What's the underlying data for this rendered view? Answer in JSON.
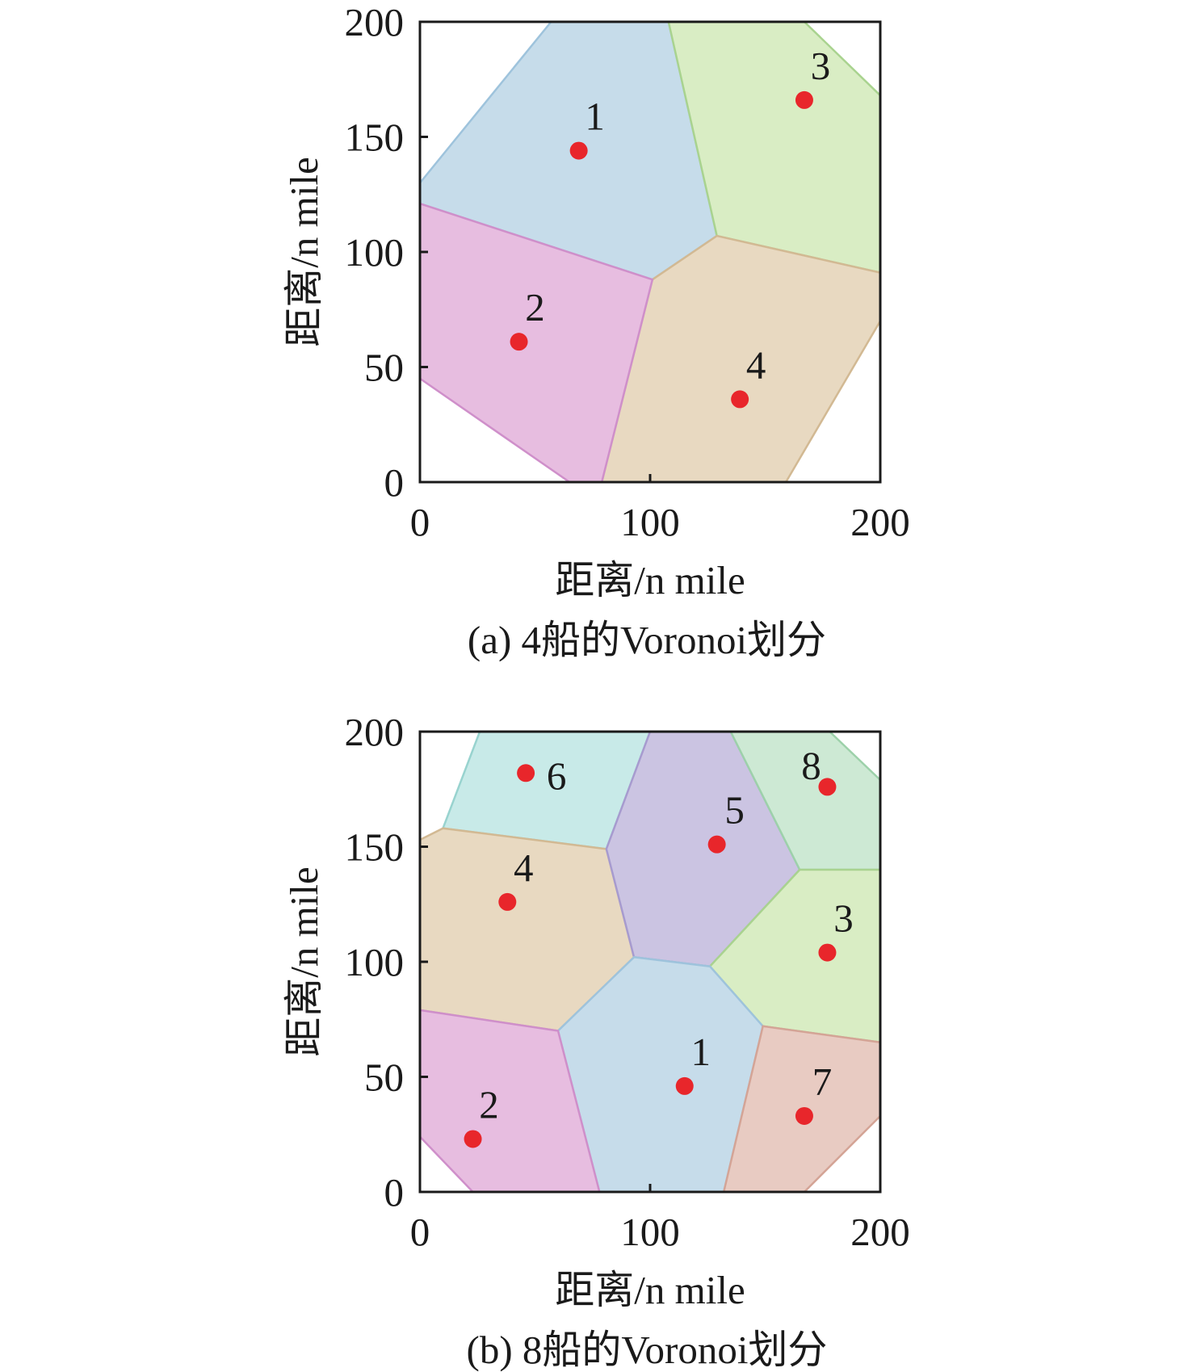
{
  "chart_data": [
    {
      "type": "scatter",
      "subtype": "voronoi",
      "caption": "(a) 4船的Voronoi划分",
      "xlabel": "距离/n mile",
      "ylabel": "距离/n mile",
      "xlim": [
        0,
        200
      ],
      "ylim": [
        0,
        200
      ],
      "xticks": [
        "0",
        "100",
        "200"
      ],
      "yticks": [
        "0",
        "50",
        "100",
        "150",
        "200"
      ],
      "point_color": "#e8262b",
      "points": [
        {
          "label": "1",
          "x": 69,
          "y": 144
        },
        {
          "label": "2",
          "x": 43,
          "y": 61
        },
        {
          "label": "3",
          "x": 167,
          "y": 166
        },
        {
          "label": "4",
          "x": 139,
          "y": 36
        }
      ],
      "cells": [
        {
          "site": "1",
          "color": "#c6dcea",
          "edge": "#9ec3dc",
          "vertices": [
            [
              0,
              130
            ],
            [
              57,
              200
            ],
            [
              108,
              200
            ],
            [
              129,
              107
            ],
            [
              101,
              88
            ],
            [
              0,
              121
            ]
          ]
        },
        {
          "site": "3",
          "color": "#d9edc4",
          "edge": "#a9d38f",
          "vertices": [
            [
              108,
              200
            ],
            [
              167,
              200
            ],
            [
              200,
              168
            ],
            [
              200,
              91
            ],
            [
              129,
              107
            ]
          ]
        },
        {
          "site": "4",
          "color": "#e8d9c1",
          "edge": "#d2b993",
          "vertices": [
            [
              101,
              88
            ],
            [
              129,
              107
            ],
            [
              200,
              91
            ],
            [
              200,
              70
            ],
            [
              159,
              0
            ],
            [
              79,
              0
            ]
          ]
        },
        {
          "site": "2",
          "color": "#e7bde0",
          "edge": "#cf8fca",
          "vertices": [
            [
              0,
              121
            ],
            [
              101,
              88
            ],
            [
              79,
              0
            ],
            [
              65,
              0
            ],
            [
              0,
              45
            ]
          ]
        }
      ]
    },
    {
      "type": "scatter",
      "subtype": "voronoi",
      "caption": "(b) 8船的Voronoi划分",
      "xlabel": "距离/n mile",
      "ylabel": "距离/n mile",
      "xlim": [
        0,
        200
      ],
      "ylim": [
        0,
        200
      ],
      "xticks": [
        "0",
        "100",
        "200"
      ],
      "yticks": [
        "0",
        "50",
        "100",
        "150",
        "200"
      ],
      "point_color": "#e8262b",
      "points": [
        {
          "label": "1",
          "x": 115,
          "y": 46
        },
        {
          "label": "2",
          "x": 23,
          "y": 23
        },
        {
          "label": "3",
          "x": 177,
          "y": 104
        },
        {
          "label": "4",
          "x": 38,
          "y": 126
        },
        {
          "label": "5",
          "x": 129,
          "y": 151
        },
        {
          "label": "6",
          "x": 46,
          "y": 182
        },
        {
          "label": "7",
          "x": 167,
          "y": 33
        },
        {
          "label": "8",
          "x": 177,
          "y": 176
        }
      ],
      "cells": [
        {
          "site": "6",
          "color": "#c8eae8",
          "edge": "#98d3cf",
          "vertices": [
            [
              10,
              158
            ],
            [
              26,
              200
            ],
            [
              100,
              200
            ],
            [
              81,
              149
            ]
          ]
        },
        {
          "site": "4",
          "color": "#e8d9c1",
          "edge": "#d2b993",
          "vertices": [
            [
              0,
              153
            ],
            [
              10,
              158
            ],
            [
              81,
              149
            ],
            [
              93,
              102
            ],
            [
              60,
              70
            ],
            [
              0,
              79
            ]
          ]
        },
        {
          "site": "5",
          "color": "#cbc4e2",
          "edge": "#a79bcf",
          "vertices": [
            [
              81,
              149
            ],
            [
              100,
              200
            ],
            [
              135,
              200
            ],
            [
              165,
              140
            ],
            [
              126,
              98
            ],
            [
              93,
              102
            ]
          ]
        },
        {
          "site": "8",
          "color": "#cde9d4",
          "edge": "#9dd1aa",
          "vertices": [
            [
              135,
              200
            ],
            [
              178,
              200
            ],
            [
              200,
              179
            ],
            [
              200,
              140
            ],
            [
              165,
              140
            ]
          ]
        },
        {
          "site": "3",
          "color": "#d9edc4",
          "edge": "#a9d38f",
          "vertices": [
            [
              165,
              140
            ],
            [
              200,
              140
            ],
            [
              200,
              65
            ],
            [
              149,
              72
            ],
            [
              126,
              98
            ]
          ]
        },
        {
          "site": "1",
          "color": "#c6dcea",
          "edge": "#9ec3dc",
          "vertices": [
            [
              93,
              102
            ],
            [
              126,
              98
            ],
            [
              149,
              72
            ],
            [
              132,
              0
            ],
            [
              78,
              0
            ],
            [
              60,
              70
            ]
          ]
        },
        {
          "site": "7",
          "color": "#e8cbc2",
          "edge": "#d4a496",
          "vertices": [
            [
              149,
              72
            ],
            [
              200,
              65
            ],
            [
              200,
              33
            ],
            [
              167,
              0
            ],
            [
              132,
              0
            ]
          ]
        },
        {
          "site": "2",
          "color": "#e7bde0",
          "edge": "#cf8fca",
          "vertices": [
            [
              0,
              79
            ],
            [
              60,
              70
            ],
            [
              78,
              0
            ],
            [
              23,
              0
            ],
            [
              0,
              24
            ]
          ]
        }
      ]
    }
  ]
}
